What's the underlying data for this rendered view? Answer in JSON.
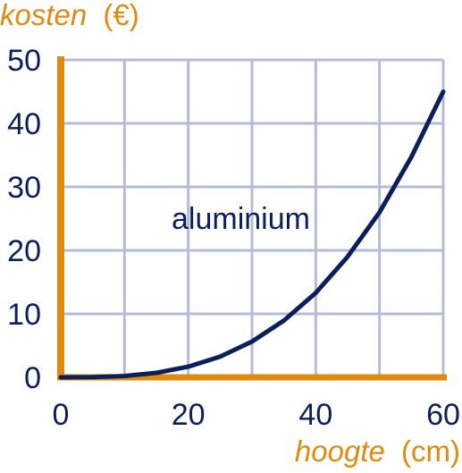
{
  "chart_data": {
    "type": "line",
    "title": "",
    "ylabel": {
      "name": "kosten",
      "unit": "(€)"
    },
    "xlabel": {
      "name": "hoogte",
      "unit": "(cm)"
    },
    "xlim": [
      0,
      60
    ],
    "ylim": [
      0,
      50
    ],
    "x_ticks": [
      0,
      20,
      40,
      60
    ],
    "y_ticks": [
      0,
      10,
      20,
      30,
      40,
      50
    ],
    "grid": true,
    "colors": {
      "axis": "#e08b0e",
      "grid": "#b6bbd6",
      "line": "#0b1f5a",
      "text": "#0b1f5a"
    },
    "series": [
      {
        "name": "aluminium",
        "x": [
          0,
          5,
          10,
          15,
          20,
          25,
          30,
          35,
          40,
          45,
          50,
          55,
          60
        ],
        "y": [
          0,
          0.03,
          0.21,
          0.7,
          1.67,
          3.26,
          5.63,
          8.94,
          13.3,
          19.0,
          26.0,
          34.7,
          45.0
        ]
      }
    ]
  }
}
